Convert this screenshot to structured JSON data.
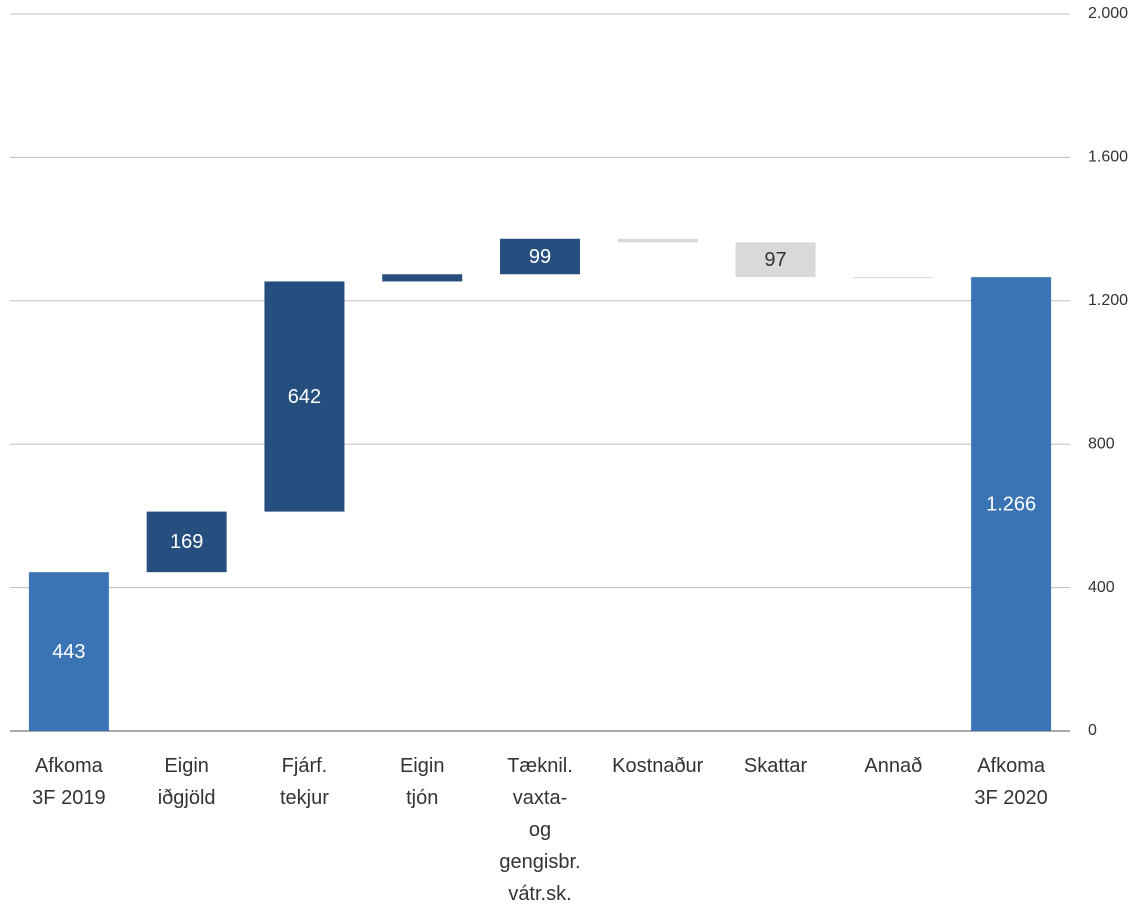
{
  "chart_data": {
    "type": "waterfall",
    "categories": [
      "Afkoma\n3F 2019",
      "Eigin\niðgjöld",
      "Fjárf.\ntekjur",
      "Eigin\ntjón",
      "Tæknil.\nvaxta-\nog\ngengisbr.\nvátr.sk.",
      "Kostnaður",
      "Skattar",
      "Annað",
      "Afkoma\n3F 2020"
    ],
    "values": [
      443,
      169,
      642,
      20,
      99,
      -10,
      -97,
      -1,
      1266
    ],
    "value_labels": [
      "443",
      "169",
      "642",
      null,
      "99",
      null,
      "97",
      null,
      "1.266"
    ],
    "totals": [
      true,
      false,
      false,
      false,
      false,
      false,
      false,
      false,
      true
    ],
    "colors": {
      "total": "#3a74b5",
      "increase": "#264f80",
      "decrease": "#d9d9d9"
    },
    "ylim": [
      0,
      2000
    ],
    "yticks": [
      0,
      400,
      800,
      {
        "value": 1200,
        "label": "1.200"
      },
      {
        "value": 1600,
        "label": "1.600"
      },
      {
        "value": 2000,
        "label": "2.000"
      }
    ],
    "grid": true
  }
}
